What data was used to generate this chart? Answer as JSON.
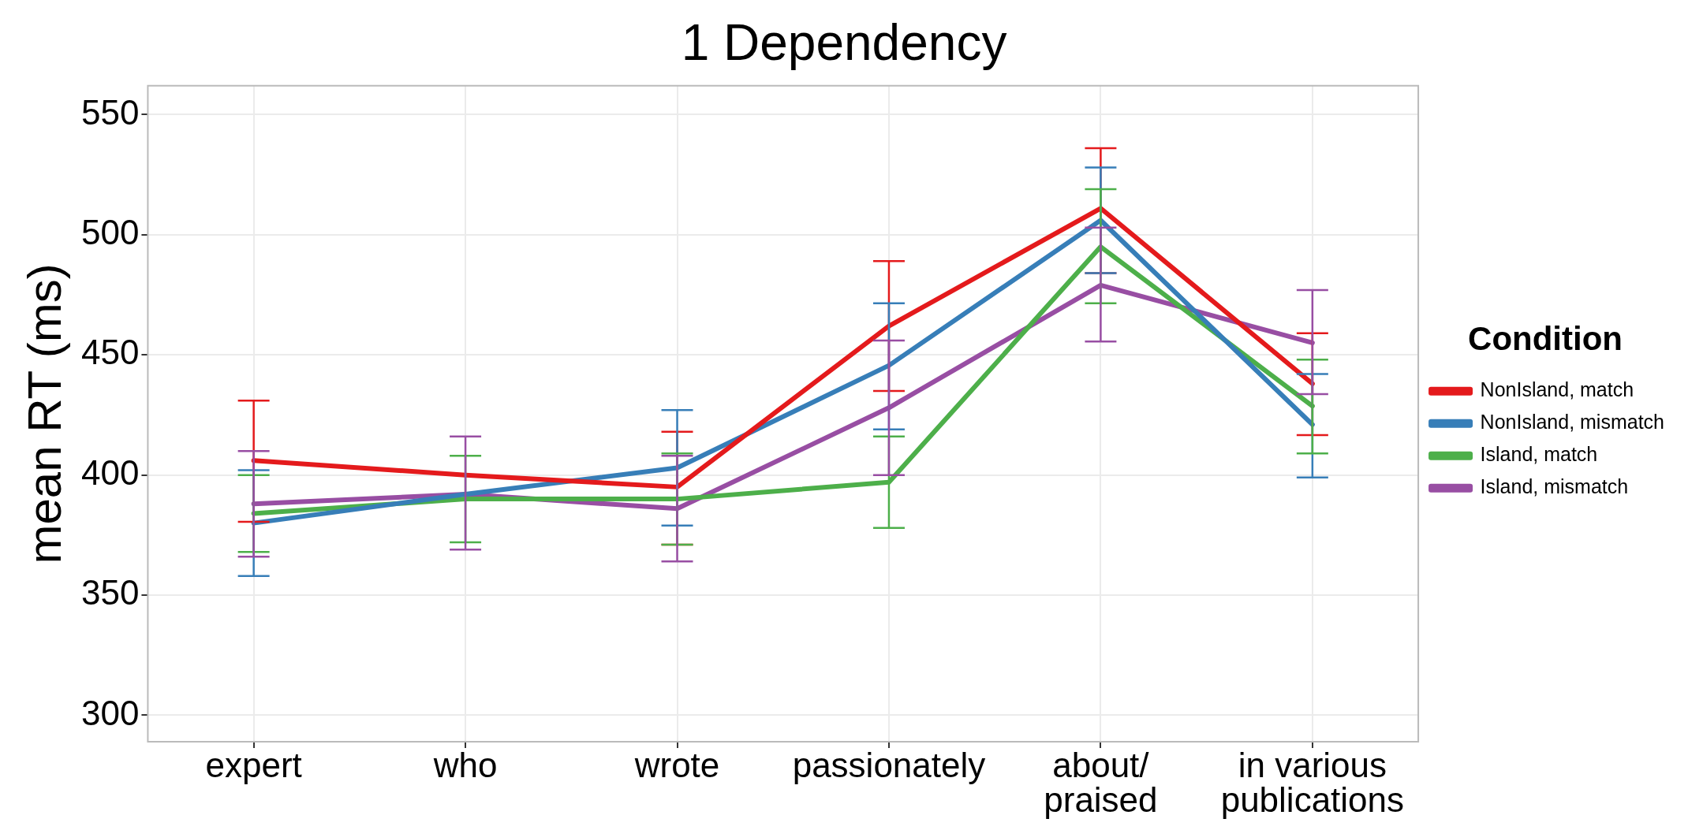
{
  "chart_data": {
    "type": "line",
    "title": "1 Dependency",
    "ylabel": "mean RT (ms)",
    "legend_title": "Condition",
    "categories": [
      "expert",
      "who",
      "wrote",
      "passionately",
      "about/\npraised",
      "in various\npublications"
    ],
    "series": [
      {
        "name": "NonIsland, match",
        "color": "#e41a1c",
        "values": [
          406,
          400,
          395,
          462,
          511,
          438
        ],
        "errors": [
          [
            380.5,
            431
          ],
          null,
          [
            371,
            418
          ],
          [
            435,
            489
          ],
          [
            484,
            536
          ],
          [
            416.6,
            459
          ]
        ]
      },
      {
        "name": "NonIsland, mismatch",
        "color": "#377eb8",
        "values": [
          380,
          392,
          403,
          445.6,
          506,
          421
        ],
        "errors": [
          [
            358,
            402
          ],
          null,
          [
            379,
            427
          ],
          [
            419,
            471.5
          ],
          [
            484,
            528
          ],
          [
            399,
            442
          ]
        ]
      },
      {
        "name": "Island, match",
        "color": "#4daf4a",
        "values": [
          384,
          390,
          390,
          397,
          495,
          428.7
        ],
        "errors": [
          [
            368,
            400
          ],
          [
            372,
            408
          ],
          [
            371,
            409
          ],
          [
            378,
            416
          ],
          [
            471.5,
            519
          ],
          [
            409,
            448
          ]
        ]
      },
      {
        "name": "Island, mismatch",
        "color": "#984ea3",
        "values": [
          388,
          392,
          386,
          428,
          479,
          455
        ],
        "errors": [
          [
            366,
            410
          ],
          [
            369,
            416
          ],
          [
            364,
            408
          ],
          [
            400,
            456
          ],
          [
            455.6,
            503
          ],
          [
            433.7,
            477
          ]
        ]
      }
    ],
    "ylim": [
      289,
      562
    ],
    "yticks": [
      300,
      350,
      400,
      450,
      500,
      550
    ],
    "grid": true,
    "legend": "right",
    "marker": "none",
    "line_style": "solid"
  }
}
